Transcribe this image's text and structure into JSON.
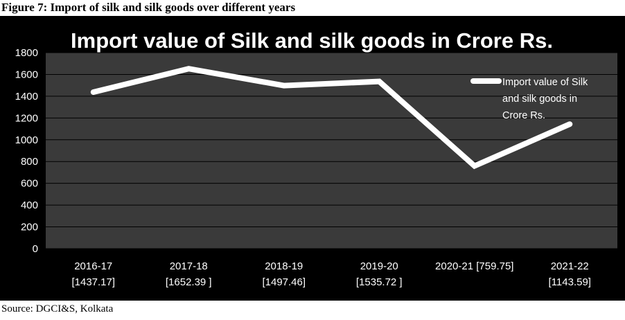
{
  "figure": {
    "caption": "Figure 7: Import of silk and silk goods over different years",
    "source": "Source: DGCI&S, Kolkata"
  },
  "chart_data": {
    "type": "line",
    "title": "Import value of Silk and silk goods in Crore Rs.",
    "categories": [
      [
        "2016-17",
        "[1437.17]"
      ],
      [
        "2017-18",
        "[1652.39 ]"
      ],
      [
        "2018-19",
        "[1497.46]"
      ],
      [
        "2019-20",
        "[1535.72 ]"
      ],
      [
        "2020-21 [759.75]"
      ],
      [
        "2021-22",
        "[1143.59]"
      ]
    ],
    "series": [
      {
        "name": "Import value of Silk and silk goods in Crore Rs.",
        "legend_lines": [
          "Import value of Silk",
          "and silk goods in",
          "Crore Rs."
        ],
        "values": [
          1437.17,
          1652.39,
          1497.46,
          1535.72,
          759.75,
          1143.59
        ]
      }
    ],
    "ylim": [
      0,
      1800
    ],
    "yticks": [
      0,
      200,
      400,
      600,
      800,
      1000,
      1200,
      1400,
      1600,
      1800
    ],
    "grid": true,
    "legend": "right",
    "xlabel": "",
    "ylabel": "",
    "colors": {
      "frame_bg": "#000000",
      "plot_bg": "#3a3a3a",
      "gridline": "#000000",
      "line": "#ffffff",
      "text": "#ffffff"
    }
  }
}
